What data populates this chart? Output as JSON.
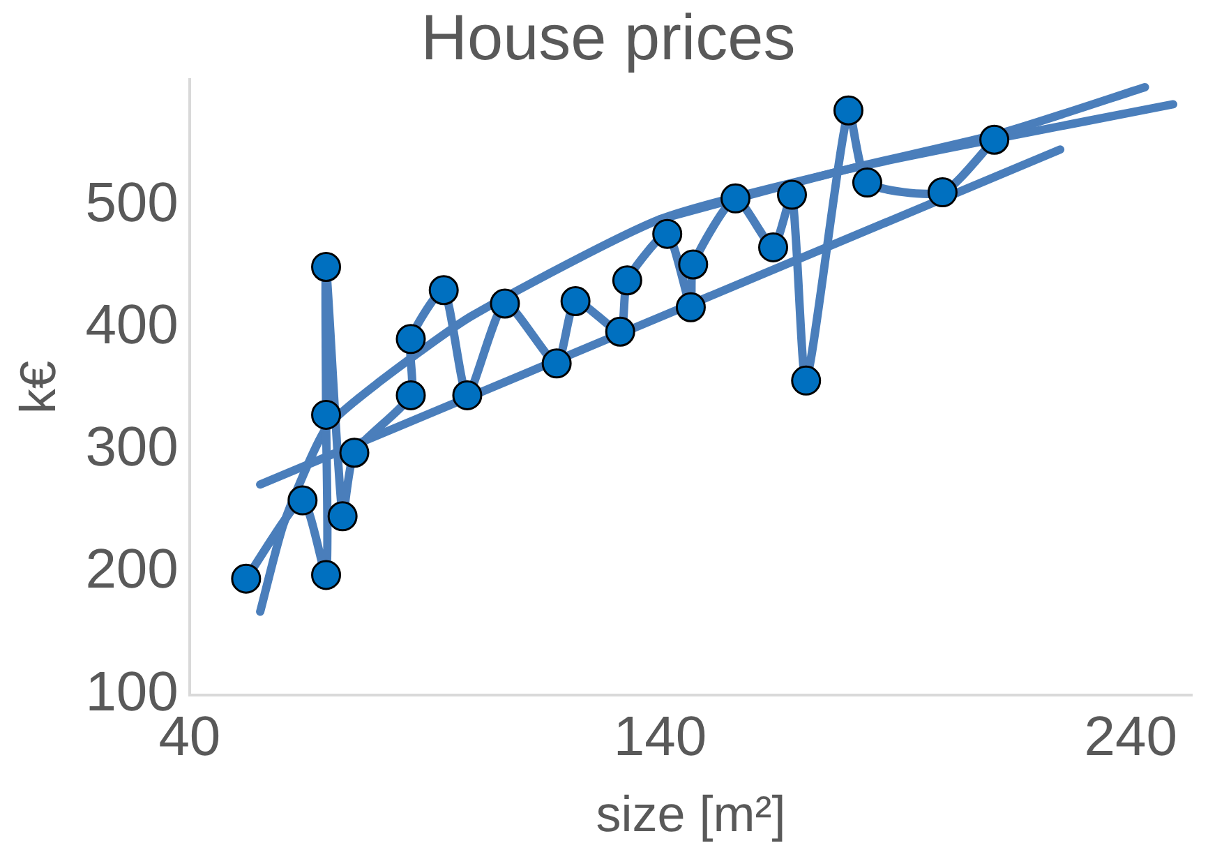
{
  "chart_data": {
    "type": "scatter",
    "title": "House prices",
    "xlabel": "size [m²]",
    "ylabel": "k€",
    "xlim": [
      40,
      253
    ],
    "xticks": [
      40,
      140,
      240
    ],
    "ylim": [
      100,
      603
    ],
    "yticks": [
      100,
      200,
      300,
      400,
      500
    ],
    "grid": false,
    "legend": false,
    "series": [
      {
        "type": "line",
        "marker": "none",
        "line_style": "solid",
        "color": "#4a7ebb",
        "x": [
          52,
          64,
          69,
          69,
          69,
          72.5,
          75,
          87,
          87,
          94,
          99,
          107,
          118,
          122,
          131.5,
          133,
          141.5,
          146.5,
          147,
          156,
          164,
          168,
          171,
          180,
          184,
          200,
          211
        ],
        "values": [
          195,
          259,
          198,
          329,
          450,
          246,
          298,
          345,
          391,
          431,
          345,
          420,
          371,
          422,
          397,
          439,
          477,
          417,
          452,
          506,
          466,
          509,
          357,
          578,
          519,
          511,
          554
        ]
      },
      {
        "type": "line",
        "marker": "none",
        "line_style": "solid",
        "color": "#4a7ebb",
        "x": [
          55,
          225
        ],
        "values": [
          272,
          546
        ]
      },
      {
        "type": "line",
        "marker": "none",
        "line_style": "solid",
        "color": "#4a7ebb",
        "x": [
          55,
          60,
          69,
          80,
          100,
          140,
          180,
          213,
          243
        ],
        "values": [
          168,
          240,
          318,
          355,
          410,
          489,
          530,
          560,
          597
        ]
      },
      {
        "type": "line",
        "marker": "none",
        "line_style": "solid",
        "color": "#4a7ebb",
        "x": [
          140,
          180,
          213,
          249
        ],
        "values": [
          489,
          530,
          556,
          583
        ]
      },
      {
        "marker": "circle",
        "color": "#0070c0",
        "x": [
          52,
          64,
          69,
          69,
          69,
          72.5,
          75,
          87,
          87,
          94,
          99,
          107,
          118,
          122,
          131.5,
          133,
          141.5,
          146.5,
          147,
          156,
          164,
          168,
          171,
          180,
          184,
          200,
          211
        ],
        "values": [
          195,
          259,
          198,
          329,
          450,
          246,
          298,
          345,
          391,
          431,
          345,
          420,
          371,
          422,
          397,
          439,
          477,
          417,
          452,
          506,
          466,
          509,
          357,
          578,
          519,
          511,
          554
        ]
      }
    ]
  }
}
